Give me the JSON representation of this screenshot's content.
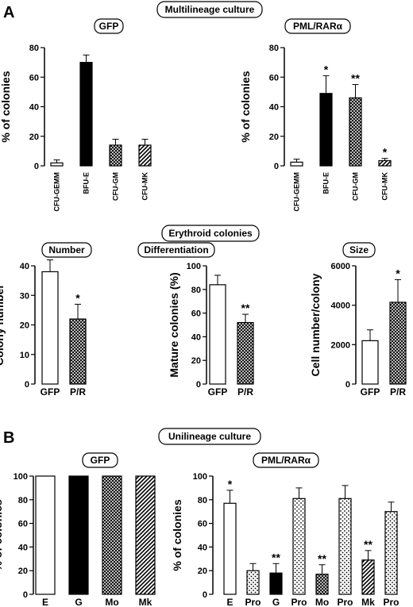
{
  "panel_a_label": "A",
  "panel_b_label": "B",
  "headers": {
    "multilineage": "Multilineage culture",
    "erythroid": "Erythroid colonies",
    "unilineage": "Unilineage culture"
  },
  "colors": {
    "ink": "#000000",
    "background": "#ffffff"
  },
  "chart_data": [
    {
      "id": "multi_gfp",
      "type": "bar",
      "title": "GFP",
      "ylabel": "% of colonies",
      "ylim": [
        0,
        80
      ],
      "yticks": [
        0,
        20,
        40,
        60,
        80
      ],
      "categories": [
        "CFU-GEMM",
        "BFU-E",
        "CFU-GM",
        "CFU-MK"
      ],
      "values": [
        2,
        70,
        14,
        14
      ],
      "errors": [
        2,
        5,
        4,
        4
      ],
      "patterns": [
        "white",
        "black",
        "cross",
        "diag"
      ],
      "significance": [
        "",
        "",
        "",
        ""
      ],
      "rotate_categories": true
    },
    {
      "id": "multi_pml",
      "type": "bar",
      "title": "PML/RARα",
      "ylabel": "% of colonies",
      "ylim": [
        0,
        80
      ],
      "yticks": [
        0,
        20,
        40,
        60,
        80
      ],
      "categories": [
        "CFU-GEMM",
        "BFU-E",
        "CFU-GM",
        "CFU-MK"
      ],
      "values": [
        2.5,
        49,
        46,
        3.5
      ],
      "errors": [
        2,
        12,
        9,
        1.5
      ],
      "patterns": [
        "white",
        "black",
        "cross",
        "diag"
      ],
      "significance": [
        "",
        "*",
        "**",
        "*"
      ],
      "rotate_categories": true
    },
    {
      "id": "ery_number",
      "type": "bar",
      "title": "Number",
      "ylabel": "Colony number",
      "ylim": [
        0,
        40
      ],
      "yticks": [
        0,
        10,
        20,
        30,
        40
      ],
      "categories": [
        "GFP",
        "P/R"
      ],
      "values": [
        38,
        22
      ],
      "errors": [
        4,
        5
      ],
      "patterns": [
        "white",
        "cross"
      ],
      "significance": [
        "",
        "*"
      ]
    },
    {
      "id": "ery_diff",
      "type": "bar",
      "title": "Differentiation",
      "ylabel": "Mature colonies (%)",
      "ylim": [
        0,
        100
      ],
      "yticks": [
        0,
        20,
        40,
        60,
        80,
        100
      ],
      "categories": [
        "GFP",
        "P/R"
      ],
      "values": [
        84,
        52
      ],
      "errors": [
        8,
        7
      ],
      "patterns": [
        "white",
        "cross"
      ],
      "significance": [
        "",
        "**"
      ]
    },
    {
      "id": "ery_size",
      "type": "bar",
      "title": "Size",
      "ylabel": "Cell number/colony",
      "ylim": [
        0,
        6000
      ],
      "yticks": [
        0,
        2000,
        4000,
        6000
      ],
      "categories": [
        "GFP",
        "P/R"
      ],
      "values": [
        2200,
        4150
      ],
      "errors": [
        550,
        1150
      ],
      "patterns": [
        "white",
        "cross"
      ],
      "significance": [
        "",
        "*"
      ]
    },
    {
      "id": "uni_gfp",
      "type": "bar",
      "title": "GFP",
      "ylabel": "% of colonies",
      "ylim": [
        0,
        100
      ],
      "yticks": [
        0,
        20,
        40,
        60,
        80,
        100
      ],
      "categories": [
        "E",
        "G",
        "Mo",
        "Mk"
      ],
      "values": [
        100,
        100,
        100,
        100
      ],
      "errors": [
        0,
        0,
        0,
        0
      ],
      "patterns": [
        "white",
        "black",
        "cross",
        "diag"
      ],
      "significance": [
        "",
        "",
        "",
        ""
      ]
    },
    {
      "id": "uni_pml",
      "type": "bar",
      "title": "PML/RARα",
      "ylabel": "% of colonies",
      "ylim": [
        0,
        100
      ],
      "yticks": [
        0,
        20,
        40,
        60,
        80,
        100
      ],
      "categories": [
        "E",
        "Pro",
        "G",
        "Pro",
        "Mo",
        "Pro",
        "Mk",
        "Pro"
      ],
      "values": [
        77,
        20,
        18,
        81,
        17,
        81,
        29,
        70
      ],
      "errors": [
        11,
        6,
        8,
        9,
        8,
        11,
        8,
        8
      ],
      "patterns": [
        "white",
        "dots",
        "black",
        "dots",
        "cross",
        "dots",
        "diag",
        "dots"
      ],
      "significance": [
        "*",
        "",
        "**",
        "",
        "**",
        "",
        "**",
        ""
      ]
    }
  ]
}
